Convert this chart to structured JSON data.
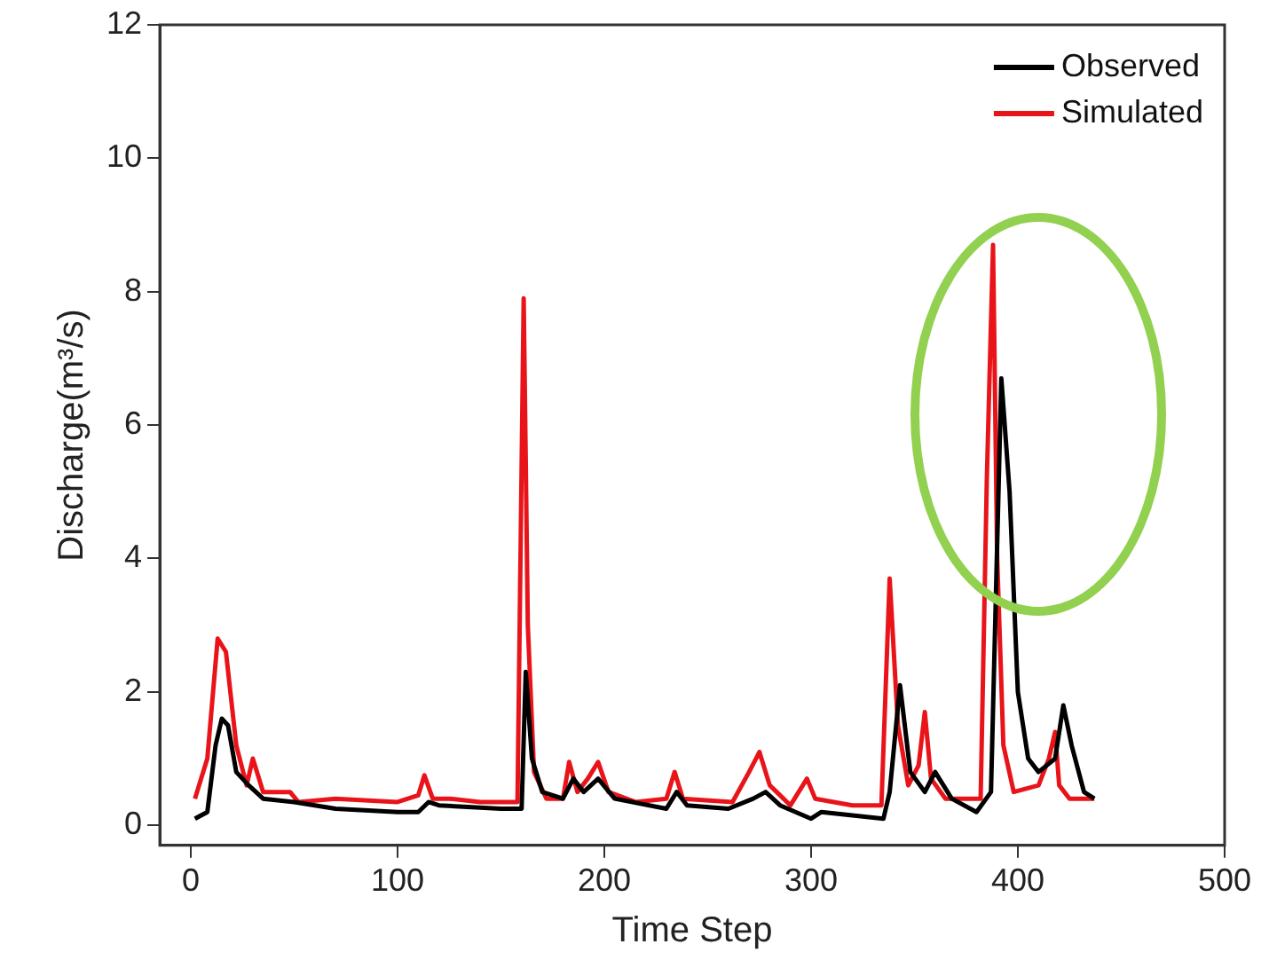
{
  "chart_data": {
    "type": "line",
    "xlabel": "Time Step",
    "ylabel": "Discharge(m³/s)",
    "xlim": [
      -15,
      500
    ],
    "xticks": [
      0,
      100,
      200,
      300,
      400,
      500
    ],
    "ylim": [
      -0.3,
      12
    ],
    "yticks": [
      0,
      2,
      4,
      6,
      8,
      10,
      12
    ],
    "grid": false,
    "legend": "top right",
    "marker": "none",
    "line_style": "solid",
    "series": [
      {
        "name": "Observed",
        "color": "#000000",
        "x": [
          2,
          8,
          12,
          15,
          18,
          22,
          28,
          35,
          50,
          70,
          100,
          110,
          115,
          120,
          150,
          160,
          162,
          165,
          170,
          180,
          185,
          190,
          197,
          205,
          230,
          235,
          240,
          260,
          272,
          278,
          285,
          300,
          305,
          320,
          335,
          338,
          343,
          348,
          355,
          360,
          368,
          380,
          387,
          392,
          396,
          400,
          405,
          410,
          418,
          422,
          426,
          432,
          437
        ],
        "values": [
          0.1,
          0.2,
          1.2,
          1.6,
          1.5,
          0.8,
          0.6,
          0.4,
          0.35,
          0.25,
          0.2,
          0.2,
          0.35,
          0.3,
          0.25,
          0.25,
          2.3,
          1.0,
          0.5,
          0.4,
          0.7,
          0.5,
          0.7,
          0.4,
          0.25,
          0.5,
          0.3,
          0.25,
          0.4,
          0.5,
          0.3,
          0.1,
          0.2,
          0.15,
          0.1,
          0.5,
          2.1,
          0.8,
          0.5,
          0.8,
          0.4,
          0.2,
          0.5,
          6.7,
          5.0,
          2.0,
          1.0,
          0.8,
          1.0,
          1.8,
          1.2,
          0.5,
          0.4
        ]
      },
      {
        "name": "Simulated",
        "color": "#e8141a",
        "x": [
          2,
          8,
          13,
          17,
          22,
          27,
          30,
          35,
          48,
          52,
          70,
          100,
          110,
          113,
          117,
          125,
          140,
          158,
          161,
          163,
          166,
          172,
          180,
          183,
          187,
          192,
          197,
          202,
          215,
          230,
          234,
          238,
          262,
          270,
          275,
          280,
          285,
          290,
          298,
          302,
          320,
          334,
          338,
          342,
          347,
          352,
          355,
          358,
          365,
          382,
          385,
          388,
          390,
          393,
          398,
          410,
          415,
          418,
          420,
          425,
          437
        ],
        "values": [
          0.4,
          1.0,
          2.8,
          2.6,
          1.2,
          0.6,
          1.0,
          0.5,
          0.5,
          0.35,
          0.4,
          0.35,
          0.45,
          0.75,
          0.4,
          0.4,
          0.35,
          0.35,
          7.9,
          3.0,
          0.8,
          0.4,
          0.4,
          0.95,
          0.5,
          0.7,
          0.95,
          0.5,
          0.35,
          0.4,
          0.8,
          0.4,
          0.35,
          0.8,
          1.1,
          0.6,
          0.45,
          0.3,
          0.7,
          0.4,
          0.3,
          0.3,
          3.7,
          1.5,
          0.6,
          0.9,
          1.7,
          0.7,
          0.4,
          0.4,
          5.2,
          8.7,
          4.0,
          1.2,
          0.5,
          0.6,
          1.0,
          1.4,
          0.6,
          0.4,
          0.4
        ]
      }
    ]
  }
}
